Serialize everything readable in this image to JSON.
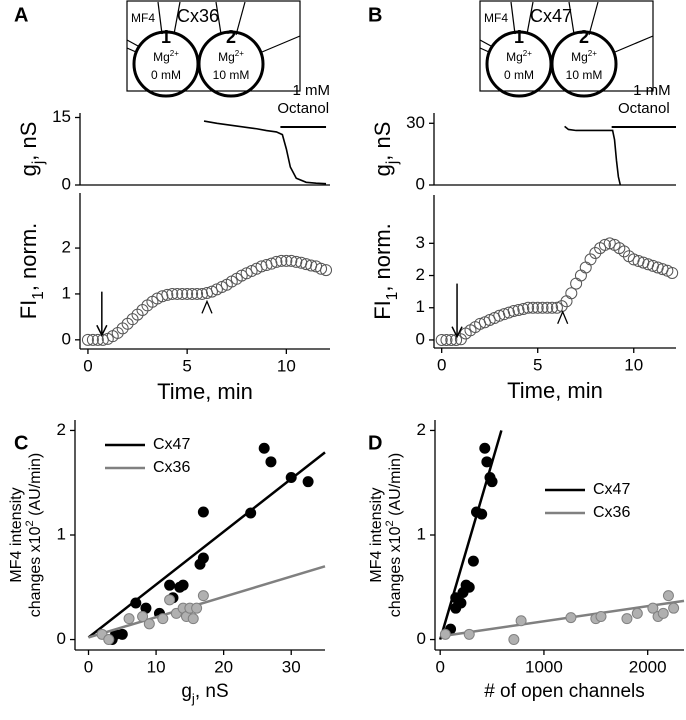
{
  "panel_labels": [
    "A",
    "B",
    "C",
    "D"
  ],
  "schematics": [
    {
      "dye": "MF4",
      "connexin": "Cx36",
      "cells": [
        {
          "number": "1",
          "ion": "Mg",
          "charge": "2+",
          "conc": "0 mM"
        },
        {
          "number": "2",
          "ion": "Mg",
          "charge": "2+",
          "conc": "10 mM"
        }
      ]
    },
    {
      "dye": "MF4",
      "connexin": "Cx47",
      "cells": [
        {
          "number": "1",
          "ion": "Mg",
          "charge": "2+",
          "conc": "0 mM"
        },
        {
          "number": "2",
          "ion": "Mg",
          "charge": "2+",
          "conc": "10 mM"
        }
      ]
    }
  ],
  "chart_data": [
    {
      "type": "line",
      "ylabel": {
        "text": "g",
        "sub": "j",
        "rest": ", nS"
      },
      "xlim": [
        -0.4,
        12.2
      ],
      "ylim": [
        0,
        16
      ],
      "yticks": [
        0,
        15
      ],
      "series": [
        {
          "color": "#000000",
          "x": [
            5.85,
            6.5,
            7,
            7.5,
            8,
            8.5,
            9,
            9.5,
            9.8,
            10,
            10.2,
            10.5,
            11,
            11.5,
            12
          ],
          "values": [
            14.2,
            13.7,
            13.4,
            13.1,
            12.8,
            12.5,
            12.1,
            11.8,
            11.2,
            8,
            4,
            1.5,
            0.6,
            0.4,
            0.3
          ]
        }
      ],
      "annotation": {
        "lines": [
          "1 mM",
          "Octanol"
        ],
        "bar_x": [
          9.7,
          12
        ]
      }
    },
    {
      "type": "scatter",
      "ylabel": {
        "text": "FI",
        "sub": "1",
        "rest": ", norm."
      },
      "xlabel": "Time, min",
      "xlim": [
        -0.4,
        12.2
      ],
      "ylim": [
        -0.2,
        3.2
      ],
      "xticks": [
        0,
        5,
        10
      ],
      "yticks": [
        0,
        1,
        2
      ],
      "series": [
        {
          "color": "#555555",
          "marker_fill": "none",
          "x": [
            0,
            0.25,
            0.5,
            0.75,
            1,
            1.25,
            1.5,
            1.75,
            2,
            2.25,
            2.5,
            2.75,
            3,
            3.25,
            3.5,
            3.75,
            4,
            4.25,
            4.5,
            4.75,
            5,
            5.25,
            5.5,
            5.75,
            6,
            6.25,
            6.5,
            6.75,
            7,
            7.25,
            7.5,
            7.75,
            8,
            8.25,
            8.5,
            8.75,
            9,
            9.25,
            9.5,
            9.75,
            10,
            10.25,
            10.5,
            10.75,
            11,
            11.25,
            11.5,
            11.75,
            12
          ],
          "values": [
            0,
            0,
            0,
            0,
            0.02,
            0.08,
            0.15,
            0.25,
            0.35,
            0.45,
            0.55,
            0.65,
            0.75,
            0.83,
            0.9,
            0.95,
            0.98,
            1,
            1,
            1,
            1,
            1,
            1,
            1,
            1.02,
            1.05,
            1.1,
            1.15,
            1.2,
            1.27,
            1.33,
            1.4,
            1.45,
            1.5,
            1.55,
            1.6,
            1.63,
            1.66,
            1.7,
            1.72,
            1.72,
            1.72,
            1.7,
            1.68,
            1.65,
            1.62,
            1.6,
            1.55,
            1.52
          ]
        }
      ],
      "arrow": {
        "x": 0.7,
        "y": [
          1.05,
          0.1
        ]
      },
      "caret": {
        "x": 6,
        "y": 0.75
      }
    },
    {
      "type": "line",
      "ylabel": {
        "text": "g",
        "sub": "j",
        "rest": ", nS"
      },
      "xlim": [
        -0.4,
        12.2
      ],
      "ylim": [
        0,
        35
      ],
      "yticks": [
        0,
        30
      ],
      "series": [
        {
          "color": "#000000",
          "x": [
            6.4,
            6.6,
            7,
            7.5,
            8,
            8.5,
            8.9,
            9.0,
            9.1,
            9.2,
            9.3
          ],
          "values": [
            28.5,
            27,
            26.5,
            26.5,
            26.5,
            26.5,
            26.5,
            22,
            12,
            4,
            0
          ]
        }
      ],
      "annotation": {
        "lines": [
          "1 mM",
          "Octanol"
        ],
        "bar_x": [
          8.85,
          12.2
        ]
      }
    },
    {
      "type": "scatter",
      "ylabel": {
        "text": "FI",
        "sub": "1",
        "rest": ", norm."
      },
      "xlabel": "Time, min",
      "xlim": [
        -0.4,
        12.2
      ],
      "ylim": [
        -0.25,
        4.5
      ],
      "xticks": [
        0,
        5,
        10
      ],
      "yticks": [
        0,
        1,
        2,
        3
      ],
      "series": [
        {
          "color": "#555555",
          "marker_fill": "none",
          "x": [
            0,
            0.25,
            0.5,
            0.75,
            1,
            1.25,
            1.5,
            1.75,
            2,
            2.25,
            2.5,
            2.75,
            3,
            3.25,
            3.5,
            3.75,
            4,
            4.25,
            4.5,
            4.75,
            5,
            5.25,
            5.5,
            5.75,
            6,
            6.25,
            6.5,
            6.75,
            7,
            7.25,
            7.5,
            7.75,
            8,
            8.25,
            8.5,
            8.75,
            9,
            9.25,
            9.5,
            9.75,
            10,
            10.25,
            10.5,
            10.75,
            11,
            11.25,
            11.5,
            11.75,
            12
          ],
          "values": [
            0,
            0,
            0,
            0,
            0.02,
            0.2,
            0.3,
            0.4,
            0.5,
            0.55,
            0.62,
            0.68,
            0.75,
            0.8,
            0.85,
            0.9,
            0.93,
            0.96,
            1,
            1,
            1,
            1,
            1,
            1,
            1,
            1.05,
            1.2,
            1.45,
            1.75,
            2,
            2.25,
            2.5,
            2.7,
            2.85,
            2.95,
            3,
            2.95,
            2.85,
            2.75,
            2.6,
            2.5,
            2.45,
            2.4,
            2.35,
            2.3,
            2.25,
            2.2,
            2.15,
            2.08
          ]
        }
      ],
      "arrow": {
        "x": 0.8,
        "y": [
          1.75,
          0.1
        ]
      },
      "caret": {
        "x": 6.3,
        "y": 0.75
      }
    },
    {
      "type": "scatter",
      "xlabel": {
        "text": "g",
        "sub": "j",
        "rest": ", nS"
      },
      "ylabel": {
        "line1": "MF4 intensity",
        "text": "changes x10",
        "sup": "2",
        "rest": " (AU/min)"
      },
      "xlim": [
        -2,
        35
      ],
      "ylim": [
        -0.1,
        2.1
      ],
      "xticks": [
        0,
        10,
        20,
        30
      ],
      "yticks": [
        0,
        1,
        2
      ],
      "legend": "upper left",
      "series": [
        {
          "name": "Cx47",
          "color": "#000000",
          "marker_fill": "#000000",
          "x": [
            3.5,
            4,
            5,
            7,
            8.5,
            10.5,
            12,
            12.5,
            13.5,
            14,
            16.5,
            17,
            17,
            24,
            26,
            27,
            30,
            32.5
          ],
          "values": [
            0,
            0.05,
            0.05,
            0.35,
            0.3,
            0.25,
            0.52,
            0.4,
            0.5,
            0.52,
            0.72,
            0.78,
            1.22,
            1.21,
            1.83,
            1.7,
            1.55,
            1.51
          ],
          "fit": {
            "x": [
              0,
              35
            ],
            "y": [
              0.02,
              1.79
            ]
          }
        },
        {
          "name": "Cx36",
          "color": "#808080",
          "marker_fill": "#b0b0b0",
          "x": [
            2,
            3,
            6,
            8,
            9,
            11,
            12,
            13,
            14,
            14.5,
            15,
            15.5,
            16,
            17
          ],
          "values": [
            0.05,
            0,
            0.2,
            0.22,
            0.15,
            0.2,
            0.38,
            0.25,
            0.3,
            0.22,
            0.3,
            0.2,
            0.3,
            0.42
          ],
          "fit": {
            "x": [
              0,
              35
            ],
            "y": [
              0.02,
              0.7
            ]
          }
        }
      ]
    },
    {
      "type": "scatter",
      "xlabel": "# of open channels",
      "ylabel": {
        "line1": "MF4 intensity",
        "text": "changes x10",
        "sup": "2",
        "rest": " (AU/min)"
      },
      "xlim": [
        -50,
        2350
      ],
      "ylim": [
        -0.1,
        2.1
      ],
      "xticks": [
        0,
        1000,
        2000
      ],
      "yticks": [
        0,
        1,
        2
      ],
      "legend": "center right",
      "series": [
        {
          "name": "Cx47",
          "color": "#000000",
          "marker_fill": "#000000",
          "x": [
            100,
            150,
            150,
            200,
            220,
            250,
            280,
            320,
            350,
            400,
            430,
            450,
            480,
            500
          ],
          "values": [
            0.1,
            0.3,
            0.4,
            0.35,
            0.45,
            0.52,
            0.5,
            0.75,
            1.22,
            1.2,
            1.83,
            1.7,
            1.55,
            1.51
          ],
          "fit": {
            "x": [
              0,
              590
            ],
            "y": [
              0,
              2
            ]
          }
        },
        {
          "name": "Cx36",
          "color": "#808080",
          "marker_fill": "#b0b0b0",
          "x": [
            50,
            280,
            710,
            780,
            1260,
            1500,
            1550,
            1800,
            1900,
            2050,
            2100,
            2150,
            2200,
            2250
          ],
          "values": [
            0.05,
            0.05,
            0,
            0.18,
            0.21,
            0.2,
            0.22,
            0.2,
            0.25,
            0.3,
            0.22,
            0.25,
            0.42,
            0.3
          ],
          "fit": {
            "x": [
              0,
              2350
            ],
            "y": [
              0.03,
              0.37
            ]
          }
        }
      ]
    }
  ]
}
